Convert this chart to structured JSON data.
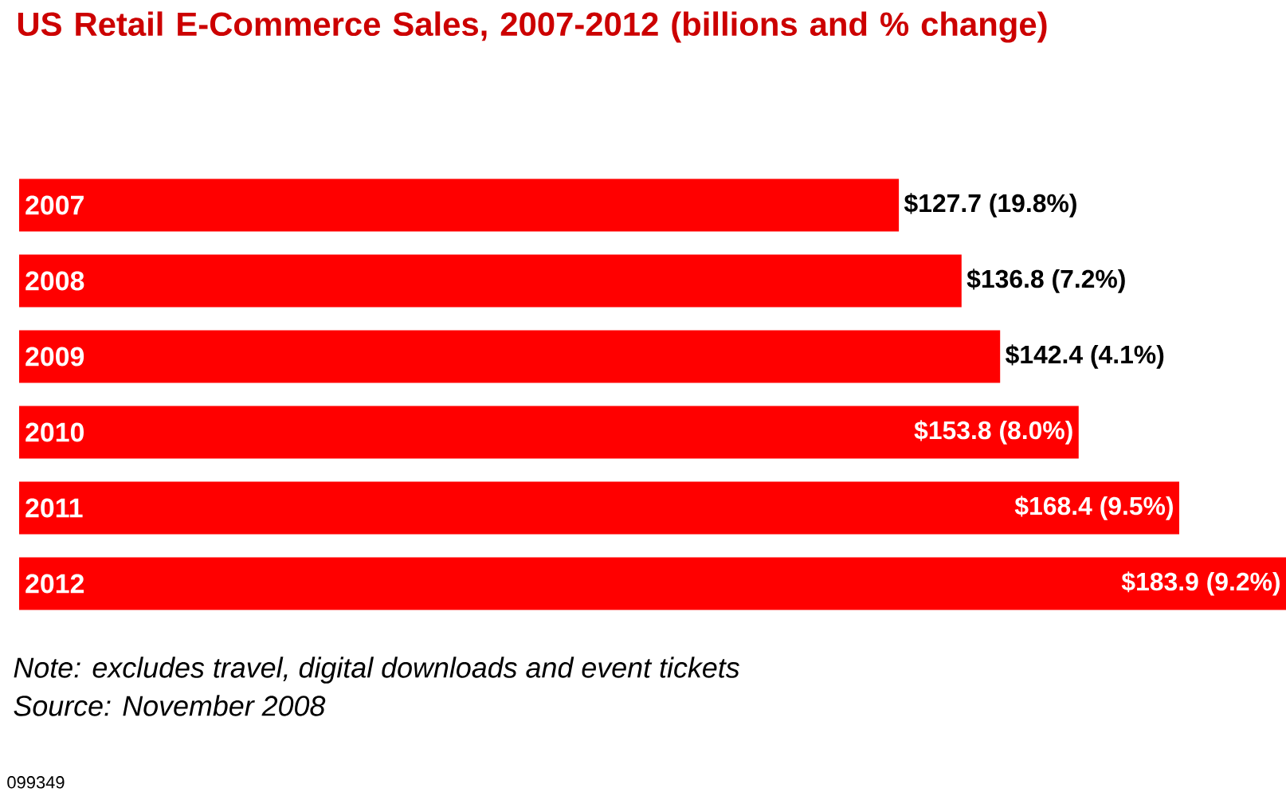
{
  "chart_data": {
    "type": "bar",
    "orientation": "horizontal",
    "title": "US Retail E-Commerce Sales, 2007-2012 (billions and % change)",
    "categories": [
      "2007",
      "2008",
      "2009",
      "2010",
      "2011",
      "2012"
    ],
    "values": [
      127.7,
      136.8,
      142.4,
      153.8,
      168.4,
      183.9
    ],
    "color": "#ff0000",
    "value_labels": [
      "$127.7 (19.8%)",
      "$136.8 (7.2%)",
      "$142.4 (4.1%)",
      "$153.8 (8.0%)",
      "$168.4 (9.5%)",
      "$183.9 (9.2%)"
    ],
    "annotations": [
      "Note: excludes travel, digital downloads and event tickets",
      "Source: November 2008",
      "099349"
    ]
  }
}
